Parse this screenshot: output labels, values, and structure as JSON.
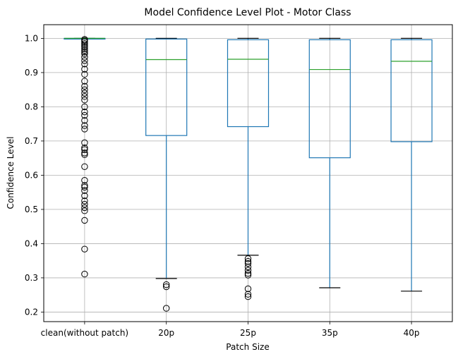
{
  "chart_data": {
    "type": "box",
    "title": "Model Confidence Level Plot - Motor Class",
    "xlabel": "Patch Size",
    "ylabel": "Confidence Level",
    "ylim": [
      0.172,
      1.04
    ],
    "yticks": [
      "0.2",
      "0.3",
      "0.4",
      "0.5",
      "0.6",
      "0.7",
      "0.8",
      "0.9",
      "1.0"
    ],
    "grid": true,
    "colors": {
      "box": "#1f77b4",
      "median": "#2ca02c",
      "flier": "#000000",
      "grid": "#b0b0b0"
    },
    "categories": [
      "clean(without patch)",
      "20p",
      "25p",
      "35p",
      "40p"
    ],
    "boxes": [
      {
        "label": "clean(without patch)",
        "whisker_low": 0.999,
        "q1": 0.999,
        "median": 1.0,
        "q3": 1.0,
        "whisker_high": 1.0,
        "fliers": [
          0.311,
          0.384,
          0.468,
          0.496,
          0.505,
          0.515,
          0.525,
          0.54,
          0.555,
          0.565,
          0.57,
          0.585,
          0.625,
          0.66,
          0.665,
          0.675,
          0.68,
          0.695,
          0.735,
          0.745,
          0.76,
          0.775,
          0.785,
          0.8,
          0.82,
          0.83,
          0.84,
          0.85,
          0.86,
          0.875,
          0.895,
          0.91,
          0.925,
          0.935,
          0.945,
          0.955,
          0.96,
          0.965,
          0.97,
          0.975,
          0.98,
          0.985,
          0.99,
          0.994,
          0.997
        ]
      },
      {
        "label": "20p",
        "whisker_low": 0.298,
        "q1": 0.716,
        "median": 0.938,
        "q3": 0.998,
        "whisker_high": 1.0,
        "fliers": [
          0.211,
          0.274,
          0.28
        ]
      },
      {
        "label": "25p",
        "whisker_low": 0.366,
        "q1": 0.742,
        "median": 0.939,
        "q3": 0.996,
        "whisker_high": 1.0,
        "fliers": [
          0.245,
          0.252,
          0.268,
          0.308,
          0.313,
          0.322,
          0.332,
          0.342,
          0.348,
          0.356
        ]
      },
      {
        "label": "35p",
        "whisker_low": 0.271,
        "q1": 0.651,
        "median": 0.909,
        "q3": 0.996,
        "whisker_high": 1.0,
        "fliers": []
      },
      {
        "label": "40p",
        "whisker_low": 0.261,
        "q1": 0.698,
        "median": 0.933,
        "q3": 0.996,
        "whisker_high": 1.0,
        "fliers": []
      }
    ]
  }
}
